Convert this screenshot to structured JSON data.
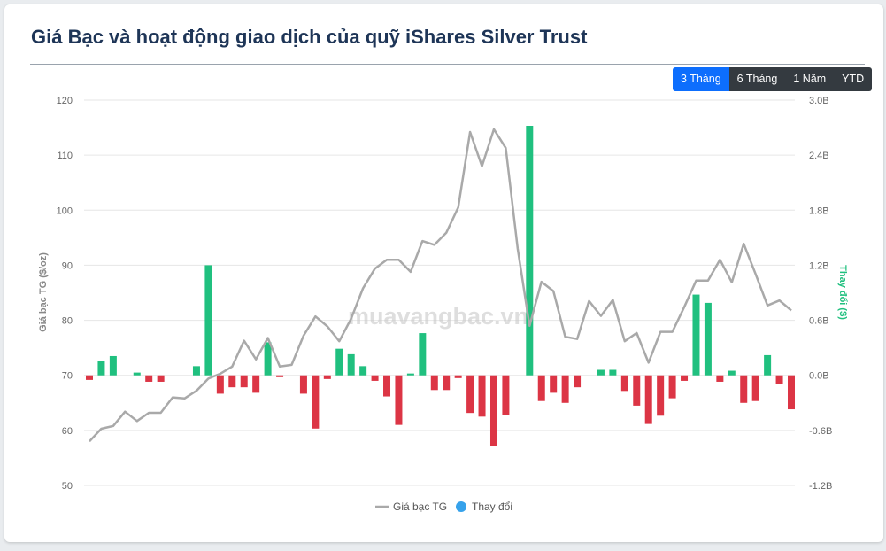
{
  "page": {
    "title": "Giá Bạc và hoạt động giao dịch của quỹ iShares Silver Trust",
    "tabs": [
      "3 Tháng",
      "6 Tháng",
      "1 Năm",
      "YTD"
    ],
    "active_tab": "3 Tháng",
    "watermark": "muavangbac.vn"
  },
  "chart_data": {
    "type": "bar",
    "title": "",
    "xlabel": "",
    "ylabel_left": "Giá bạc TG ($/oz)",
    "ylabel_right": "Thay đổi ($)",
    "ylim_left": [
      50,
      120
    ],
    "ylim_right": [
      -1.2,
      3.0
    ],
    "left_ticks": [
      "50",
      "60",
      "70",
      "80",
      "90",
      "100",
      "110",
      "120"
    ],
    "right_ticks": [
      "-1.2B",
      "-0.6B",
      "0.0B",
      "0.6B",
      "1.2B",
      "1.8B",
      "2.4B",
      "3.0B"
    ],
    "grid": true,
    "legend": "bottom",
    "legend_items": [
      "Giá bạc TG",
      "Thay đổi"
    ],
    "colors": {
      "line": "#a9a9a9",
      "positive": "#20c07f",
      "negative": "#dc3545",
      "legend_dot": "#36a2eb"
    },
    "series": [
      {
        "name": "Giá bạc TG",
        "type": "line",
        "axis": "left",
        "values": [
          58,
          60.3,
          60.8,
          63.4,
          61.7,
          63.2,
          63.2,
          66,
          65.8,
          67.2,
          69.4,
          70.3,
          71.6,
          76.3,
          72.9,
          76.8,
          71.6,
          71.9,
          77.2,
          80.7,
          78.9,
          76.2,
          80.3,
          85.8,
          89.4,
          91,
          91,
          88.8,
          94.4,
          93.7,
          95.9,
          100.5,
          114.2,
          108,
          114.7,
          111.3,
          93,
          79,
          87,
          85.3,
          77,
          76.6,
          83.5,
          80.8,
          83.7,
          76.2,
          77.7,
          72.3,
          77.9,
          77.9,
          82.4,
          87.2,
          87.2,
          91,
          86.9,
          93.9,
          88.4,
          82.7,
          83.6,
          81.8
        ]
      },
      {
        "name": "Thay đổi",
        "type": "bar",
        "axis": "right",
        "values": [
          -0.05,
          0.16,
          0.21,
          0,
          0.03,
          -0.07,
          -0.07,
          0,
          0,
          0.1,
          1.2,
          -0.2,
          -0.13,
          -0.13,
          -0.19,
          0.36,
          -0.02,
          0,
          -0.2,
          -0.58,
          -0.04,
          0.29,
          0.23,
          0.1,
          -0.06,
          -0.23,
          -0.54,
          0.02,
          0.46,
          -0.16,
          -0.16,
          -0.03,
          -0.41,
          -0.45,
          -0.77,
          -0.43,
          0,
          2.72,
          -0.28,
          -0.19,
          -0.3,
          -0.13,
          0,
          0.06,
          0.06,
          -0.17,
          -0.33,
          -0.53,
          -0.44,
          -0.25,
          -0.06,
          0.88,
          0.79,
          -0.07,
          0.05,
          -0.3,
          -0.28,
          0.22,
          -0.09,
          -0.37
        ]
      }
    ]
  }
}
